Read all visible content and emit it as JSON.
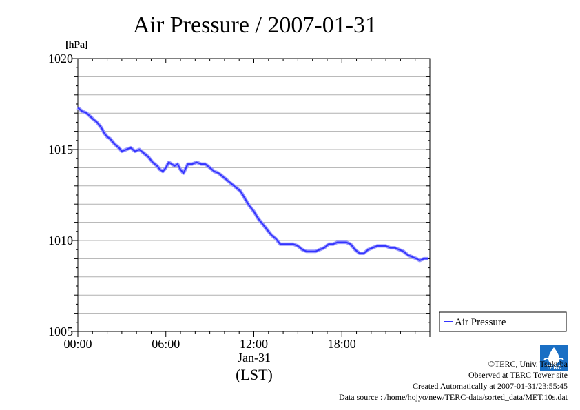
{
  "chart_data": {
    "type": "line",
    "title": "Air Pressure / 2007-01-31",
    "ylabel": "[hPa]",
    "xlabel": "(LST)",
    "x_date_label": "Jan-31",
    "ylim": [
      1005,
      1020
    ],
    "xlim": [
      0,
      24
    ],
    "y_ticks": [
      "1005",
      "1010",
      "1015",
      "1020"
    ],
    "x_ticks": [
      "00:00",
      "06:00",
      "12:00",
      "18:00"
    ],
    "grid": true,
    "legend_placement": "bottom-right, outside",
    "series": [
      {
        "name": "Air Pressure",
        "color": "#3333ff",
        "x": [
          0,
          0.3,
          0.6,
          1.0,
          1.3,
          1.6,
          1.8,
          2.0,
          2.2,
          2.5,
          2.8,
          3.0,
          3.3,
          3.6,
          3.9,
          4.2,
          4.5,
          4.8,
          5.1,
          5.4,
          5.6,
          5.8,
          6.0,
          6.2,
          6.4,
          6.6,
          6.8,
          7.0,
          7.2,
          7.5,
          7.8,
          8.1,
          8.4,
          8.7,
          9.0,
          9.3,
          9.6,
          9.9,
          10.2,
          10.5,
          10.8,
          11.1,
          11.4,
          11.7,
          12.0,
          12.3,
          12.6,
          12.9,
          13.2,
          13.5,
          13.8,
          14.1,
          14.4,
          14.7,
          15.0,
          15.3,
          15.6,
          15.9,
          16.2,
          16.5,
          16.8,
          17.1,
          17.4,
          17.7,
          18.0,
          18.3,
          18.6,
          18.9,
          19.2,
          19.5,
          19.8,
          20.1,
          20.4,
          20.7,
          21.0,
          21.3,
          21.6,
          21.9,
          22.2,
          22.5,
          22.8,
          23.1,
          23.3,
          23.6,
          23.9
        ],
        "values": [
          1017.3,
          1017.1,
          1017.0,
          1016.7,
          1016.5,
          1016.2,
          1015.9,
          1015.7,
          1015.6,
          1015.3,
          1015.1,
          1014.9,
          1015.0,
          1015.1,
          1014.9,
          1015.0,
          1014.8,
          1014.6,
          1014.3,
          1014.1,
          1013.9,
          1013.8,
          1014.0,
          1014.3,
          1014.2,
          1014.1,
          1014.2,
          1013.9,
          1013.7,
          1014.2,
          1014.2,
          1014.3,
          1014.2,
          1014.2,
          1014.0,
          1013.8,
          1013.7,
          1013.5,
          1013.3,
          1013.1,
          1012.9,
          1012.7,
          1012.3,
          1011.9,
          1011.6,
          1011.2,
          1010.9,
          1010.6,
          1010.3,
          1010.1,
          1009.8,
          1009.8,
          1009.8,
          1009.8,
          1009.7,
          1009.5,
          1009.4,
          1009.4,
          1009.4,
          1009.5,
          1009.6,
          1009.8,
          1009.8,
          1009.9,
          1009.9,
          1009.9,
          1009.8,
          1009.5,
          1009.3,
          1009.3,
          1009.5,
          1009.6,
          1009.7,
          1009.7,
          1009.7,
          1009.6,
          1009.6,
          1009.5,
          1009.4,
          1009.2,
          1009.1,
          1009.0,
          1008.9,
          1009.0,
          1009.0
        ]
      }
    ],
    "legend_label": "Air Pressure"
  },
  "credits": {
    "copyright": "©TERC, Univ. Tsukuba",
    "site": "Observed at TERC Tower site",
    "created": "Created Automatically at 2007-01-31/23:55:45",
    "source": "Data source : /home/hojyo/new/TERC-data/sorted_data/MET.10s.dat"
  },
  "logo": {
    "text": "TERC",
    "color": "#1a6fc4"
  }
}
